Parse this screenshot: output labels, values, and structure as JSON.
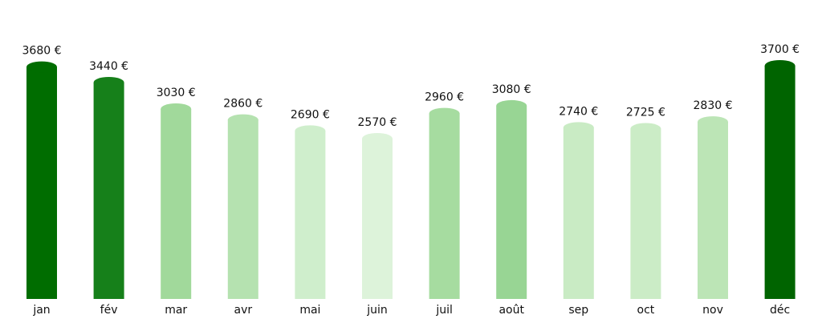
{
  "chart_data": {
    "type": "bar",
    "title": "",
    "xlabel": "",
    "ylabel": "",
    "ylim": [
      0,
      3700
    ],
    "grid": false,
    "value_suffix": " €",
    "categories": [
      "jan",
      "fév",
      "mar",
      "avr",
      "mai",
      "juin",
      "juil",
      "août",
      "sep",
      "oct",
      "nov",
      "déc"
    ],
    "values": [
      3680,
      3440,
      3030,
      2860,
      2690,
      2570,
      2960,
      3080,
      2740,
      2725,
      2830,
      3700
    ],
    "data_labels": [
      "3680 €",
      "3440 €",
      "3030 €",
      "2860 €",
      "2690 €",
      "2570 €",
      "2960 €",
      "3080 €",
      "2740 €",
      "2725 €",
      "2830 €",
      "3700 €"
    ],
    "colors": [
      "#006d00",
      "#16801a",
      "#a1d99b",
      "#b5e2b0",
      "#cfeecc",
      "#ddf3da",
      "#a6dca0",
      "#98d594",
      "#c9ebc4",
      "#cbecc6",
      "#bce5b6",
      "#006400"
    ]
  }
}
